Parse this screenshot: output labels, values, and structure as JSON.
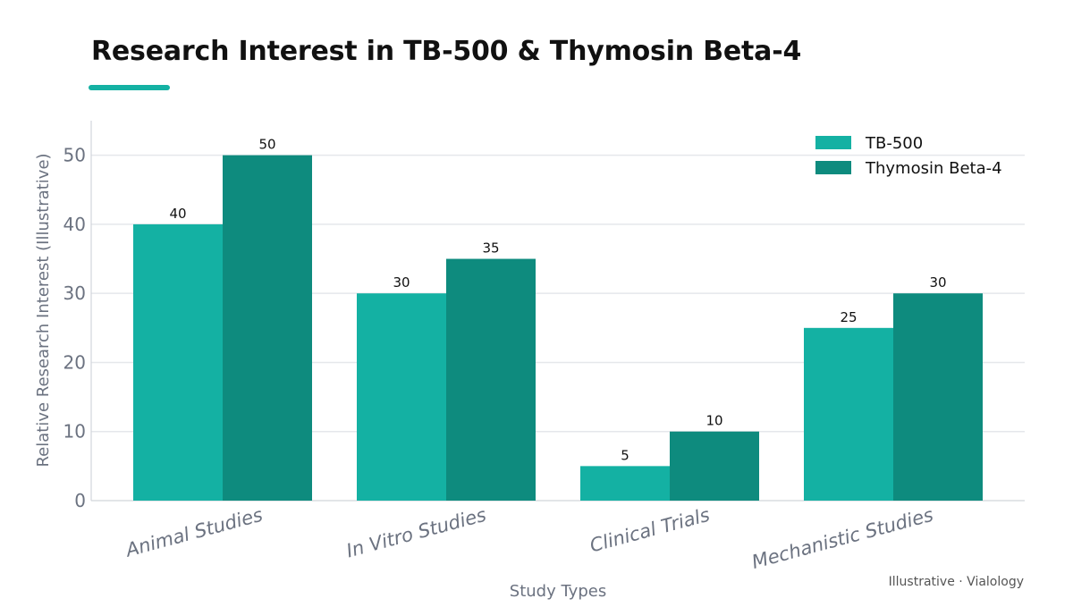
{
  "title": "Research Interest in TB-500 & Thymosin Beta-4",
  "footer": "Illustrative · Vialology",
  "colors": {
    "accent": "#14b1a3",
    "series_1": "#14b1a3",
    "series_2": "#0e8b7e",
    "grid": "#e5e7eb",
    "axis": "#d1d5db"
  },
  "chart_data": {
    "type": "bar",
    "categories": [
      "Animal Studies",
      "In Vitro Studies",
      "Clinical Trials",
      "Mechanistic Studies"
    ],
    "series": [
      {
        "name": "TB-500",
        "values": [
          40,
          30,
          5,
          25
        ],
        "color": "#14b1a3"
      },
      {
        "name": "Thymosin Beta-4",
        "values": [
          50,
          35,
          10,
          30
        ],
        "color": "#0e8b7e"
      }
    ],
    "xlabel": "Study Types",
    "ylabel": "Relative Research Interest (Illustrative)",
    "ylim": [
      0,
      55
    ],
    "yticks": [
      0,
      10,
      20,
      30,
      40,
      50
    ],
    "grid": true,
    "legend_position": "top-right",
    "data_labels": true
  }
}
